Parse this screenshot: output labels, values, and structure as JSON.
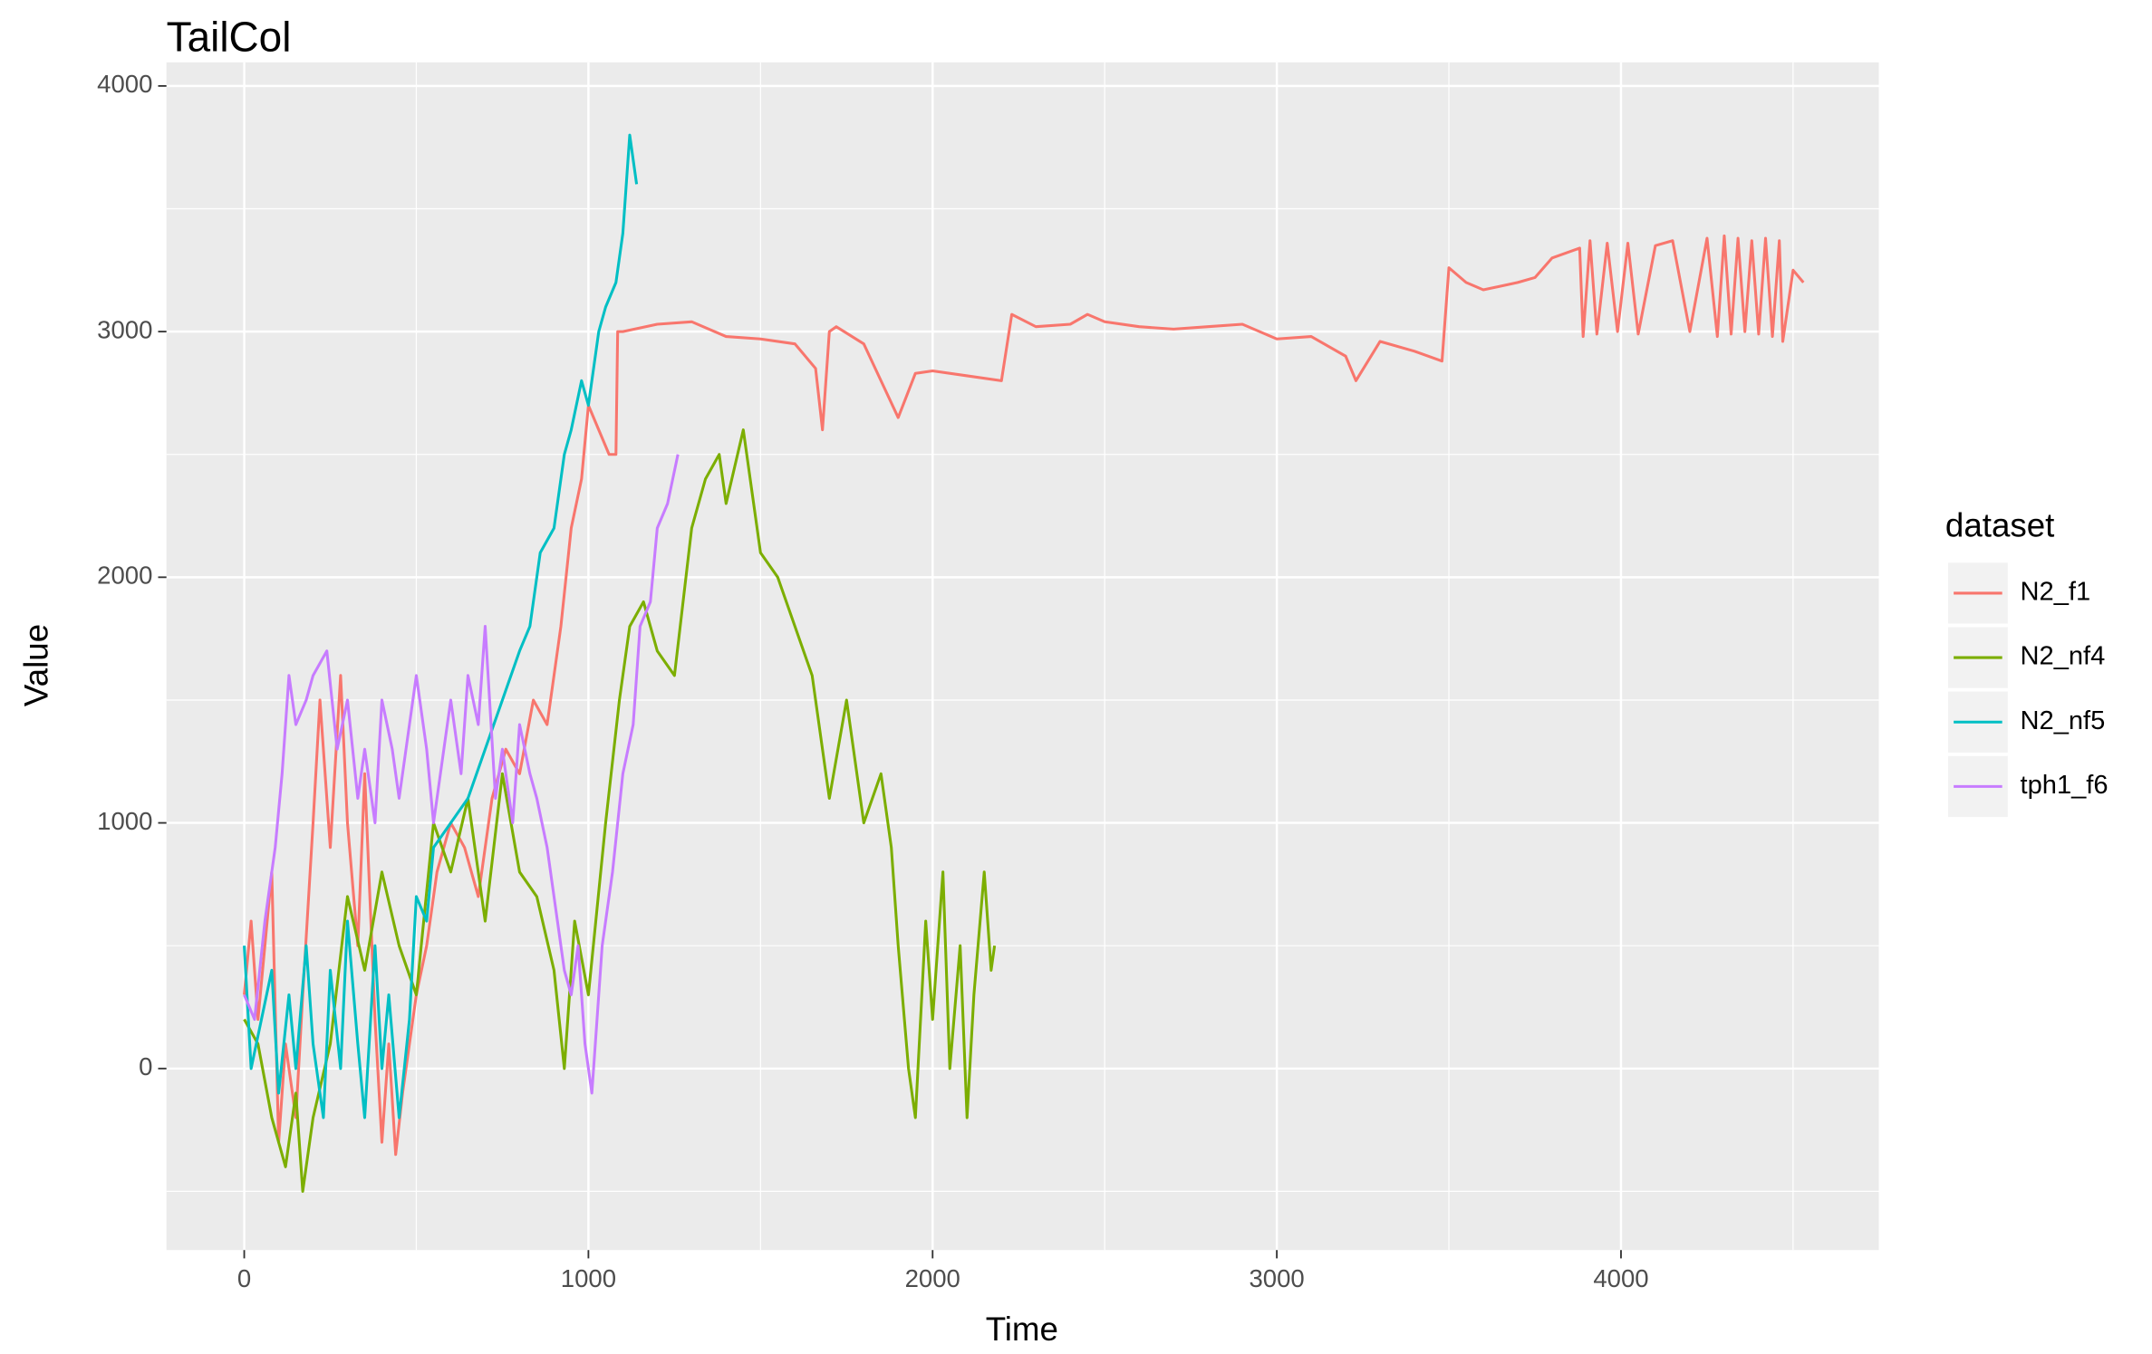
{
  "chart_data": {
    "type": "line",
    "title": "TailCol",
    "x_label": "Time",
    "y_label": "Value",
    "legend_title": "dataset",
    "legend_position": "right",
    "grid": true,
    "xlim": [
      -226,
      4749
    ],
    "ylim": [
      -739,
      4096
    ],
    "xticks": [
      0,
      1000,
      2000,
      3000,
      4000
    ],
    "yticks": [
      0,
      1000,
      2000,
      3000,
      4000
    ],
    "series": [
      {
        "name": "N2_f1",
        "color": "#f8766d",
        "x": [
          0,
          20,
          40,
          60,
          80,
          100,
          120,
          150,
          170,
          200,
          220,
          250,
          280,
          300,
          330,
          350,
          380,
          400,
          420,
          440,
          460,
          500,
          530,
          560,
          600,
          640,
          680,
          720,
          760,
          800,
          840,
          880,
          920,
          950,
          980,
          1000,
          1030,
          1060,
          1080,
          1085,
          1100,
          1200,
          1300,
          1400,
          1500,
          1600,
          1660,
          1680,
          1700,
          1720,
          1800,
          1850,
          1900,
          1950,
          2000,
          2100,
          2200,
          2230,
          2300,
          2400,
          2450,
          2500,
          2600,
          2700,
          2800,
          2900,
          3000,
          3100,
          3200,
          3230,
          3300,
          3400,
          3480,
          3500,
          3550,
          3600,
          3700,
          3750,
          3800,
          3880,
          3890,
          3910,
          3930,
          3960,
          3990,
          4020,
          4050,
          4100,
          4150,
          4200,
          4250,
          4280,
          4300,
          4320,
          4340,
          4360,
          4380,
          4400,
          4420,
          4440,
          4460,
          4470,
          4500,
          4530
        ],
        "values": [
          300,
          600,
          200,
          500,
          800,
          -300,
          100,
          -200,
          300,
          1000,
          1500,
          900,
          1600,
          1000,
          500,
          1200,
          200,
          -300,
          100,
          -350,
          -100,
          300,
          500,
          800,
          1000,
          900,
          700,
          1100,
          1300,
          1200,
          1500,
          1400,
          1800,
          2200,
          2400,
          2700,
          2600,
          2500,
          2500,
          3000,
          3000,
          3030,
          3040,
          2980,
          2970,
          2950,
          2850,
          2600,
          3000,
          3020,
          2950,
          2800,
          2650,
          2830,
          2840,
          2820,
          2800,
          3070,
          3020,
          3030,
          3070,
          3040,
          3020,
          3010,
          3020,
          3030,
          2970,
          2980,
          2900,
          2800,
          2960,
          2920,
          2880,
          3260,
          3200,
          3170,
          3200,
          3220,
          3300,
          3340,
          2980,
          3370,
          2990,
          3360,
          3000,
          3360,
          2990,
          3350,
          3370,
          3000,
          3380,
          2980,
          3390,
          2990,
          3380,
          3000,
          3370,
          2990,
          3380,
          2980,
          3370,
          2960,
          3250,
          3200
        ]
      },
      {
        "name": "N2_nf4",
        "color": "#7cae00",
        "x": [
          0,
          40,
          80,
          120,
          150,
          170,
          200,
          250,
          300,
          350,
          400,
          450,
          500,
          550,
          600,
          650,
          700,
          750,
          800,
          850,
          900,
          930,
          960,
          1000,
          1050,
          1090,
          1120,
          1160,
          1200,
          1250,
          1300,
          1340,
          1380,
          1400,
          1450,
          1500,
          1550,
          1600,
          1650,
          1700,
          1750,
          1800,
          1850,
          1880,
          1900,
          1930,
          1950,
          1980,
          2000,
          2030,
          2050,
          2080,
          2100,
          2120,
          2150,
          2170,
          2180
        ],
        "values": [
          200,
          100,
          -200,
          -400,
          -100,
          -500,
          -200,
          100,
          700,
          400,
          800,
          500,
          300,
          1000,
          800,
          1100,
          600,
          1200,
          800,
          700,
          400,
          0,
          600,
          300,
          1000,
          1500,
          1800,
          1900,
          1700,
          1600,
          2200,
          2400,
          2500,
          2300,
          2600,
          2100,
          2000,
          1800,
          1600,
          1100,
          1500,
          1000,
          1200,
          900,
          500,
          0,
          -200,
          600,
          200,
          800,
          0,
          500,
          -200,
          300,
          800,
          400,
          500
        ]
      },
      {
        "name": "N2_nf5",
        "color": "#00bfc4",
        "x": [
          0,
          20,
          50,
          80,
          100,
          130,
          150,
          180,
          200,
          230,
          250,
          280,
          300,
          330,
          350,
          380,
          400,
          420,
          450,
          480,
          500,
          530,
          550,
          600,
          650,
          700,
          750,
          800,
          830,
          860,
          900,
          930,
          950,
          980,
          1000,
          1030,
          1050,
          1080,
          1100,
          1120,
          1140
        ],
        "values": [
          500,
          0,
          200,
          400,
          -100,
          300,
          0,
          500,
          100,
          -200,
          400,
          0,
          600,
          100,
          -200,
          500,
          0,
          300,
          -200,
          200,
          700,
          600,
          900,
          1000,
          1100,
          1300,
          1500,
          1700,
          1800,
          2100,
          2200,
          2500,
          2600,
          2800,
          2700,
          3000,
          3100,
          3200,
          3400,
          3800,
          3600
        ]
      },
      {
        "name": "tph1_f6",
        "color": "#c77cff",
        "x": [
          0,
          30,
          60,
          90,
          110,
          130,
          150,
          180,
          200,
          240,
          270,
          300,
          330,
          350,
          380,
          400,
          430,
          450,
          480,
          500,
          530,
          550,
          580,
          600,
          630,
          650,
          680,
          700,
          730,
          750,
          780,
          800,
          830,
          850,
          880,
          900,
          930,
          950,
          970,
          990,
          1010,
          1040,
          1070,
          1100,
          1130,
          1150,
          1180,
          1200,
          1230,
          1260
        ],
        "values": [
          300,
          200,
          600,
          900,
          1200,
          1600,
          1400,
          1500,
          1600,
          1700,
          1300,
          1500,
          1100,
          1300,
          1000,
          1500,
          1300,
          1100,
          1400,
          1600,
          1300,
          1000,
          1300,
          1500,
          1200,
          1600,
          1400,
          1800,
          1100,
          1300,
          1000,
          1400,
          1200,
          1100,
          900,
          700,
          400,
          300,
          500,
          100,
          -100,
          500,
          800,
          1200,
          1400,
          1800,
          1900,
          2200,
          2300,
          2500
        ]
      }
    ]
  }
}
